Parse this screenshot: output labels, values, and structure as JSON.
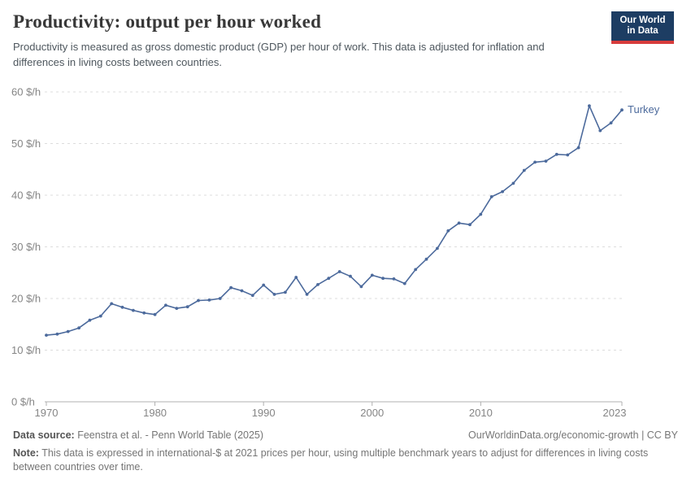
{
  "header": {
    "title": "Productivity: output per hour worked",
    "subtitle": "Productivity is measured as gross domestic product (GDP) per hour of work. This data is adjusted for inflation and differences in living costs between countries.",
    "logo": {
      "line1": "Our World",
      "line2": "in Data"
    }
  },
  "colors": {
    "line": "#4c6a9c",
    "entity_label": "#4c6a9c",
    "grid": "#dddddd",
    "axis": "#b0b0b0",
    "tick_text": "#858585",
    "logo_navy": "#1d3d63",
    "logo_red": "#d73c3c"
  },
  "chart_data": {
    "type": "line",
    "title": "Productivity: output per hour worked",
    "xlabel": "",
    "ylabel": "$ per hour",
    "xlim": [
      1970,
      2023
    ],
    "ylim": [
      0,
      60
    ],
    "grid": "horizontal-dashed",
    "legend_position": "end-of-line-label",
    "x_ticks": [
      1970,
      1980,
      1990,
      2000,
      2010,
      2023
    ],
    "y_ticks": [
      0,
      10,
      20,
      30,
      40,
      50,
      60
    ],
    "y_tick_suffix": " $/h",
    "series": [
      {
        "name": "Turkey",
        "color": "#4c6a9c",
        "x": [
          1970,
          1971,
          1972,
          1973,
          1974,
          1975,
          1976,
          1977,
          1978,
          1979,
          1980,
          1981,
          1982,
          1983,
          1984,
          1985,
          1986,
          1987,
          1988,
          1989,
          1990,
          1991,
          1992,
          1993,
          1994,
          1995,
          1996,
          1997,
          1998,
          1999,
          2000,
          2001,
          2002,
          2003,
          2004,
          2005,
          2006,
          2007,
          2008,
          2009,
          2010,
          2011,
          2012,
          2013,
          2014,
          2015,
          2016,
          2017,
          2018,
          2019,
          2020,
          2021,
          2022,
          2023
        ],
        "values": [
          12.9,
          13.1,
          13.6,
          14.3,
          15.8,
          16.6,
          19.0,
          18.3,
          17.7,
          17.2,
          16.9,
          18.7,
          18.1,
          18.4,
          19.6,
          19.7,
          20.0,
          22.1,
          21.5,
          20.6,
          22.6,
          20.8,
          21.2,
          24.1,
          20.8,
          22.7,
          23.9,
          25.2,
          24.3,
          22.3,
          24.5,
          23.9,
          23.8,
          22.9,
          25.6,
          27.6,
          29.7,
          33.1,
          34.6,
          34.3,
          36.3,
          39.7,
          40.7,
          42.3,
          44.8,
          46.4,
          46.6,
          47.9,
          47.8,
          49.2,
          57.3,
          52.5,
          54.0,
          56.5
        ]
      }
    ]
  },
  "footer": {
    "datasource_label": "Data source:",
    "datasource_value": "Feenstra et al. - Penn World Table (2025)",
    "link": "OurWorldinData.org/economic-growth | CC BY",
    "note_label": "Note:",
    "note_value": "This data is expressed in international-$ at 2021 prices per hour, using multiple benchmark years to adjust for differences in living costs between countries over time."
  }
}
